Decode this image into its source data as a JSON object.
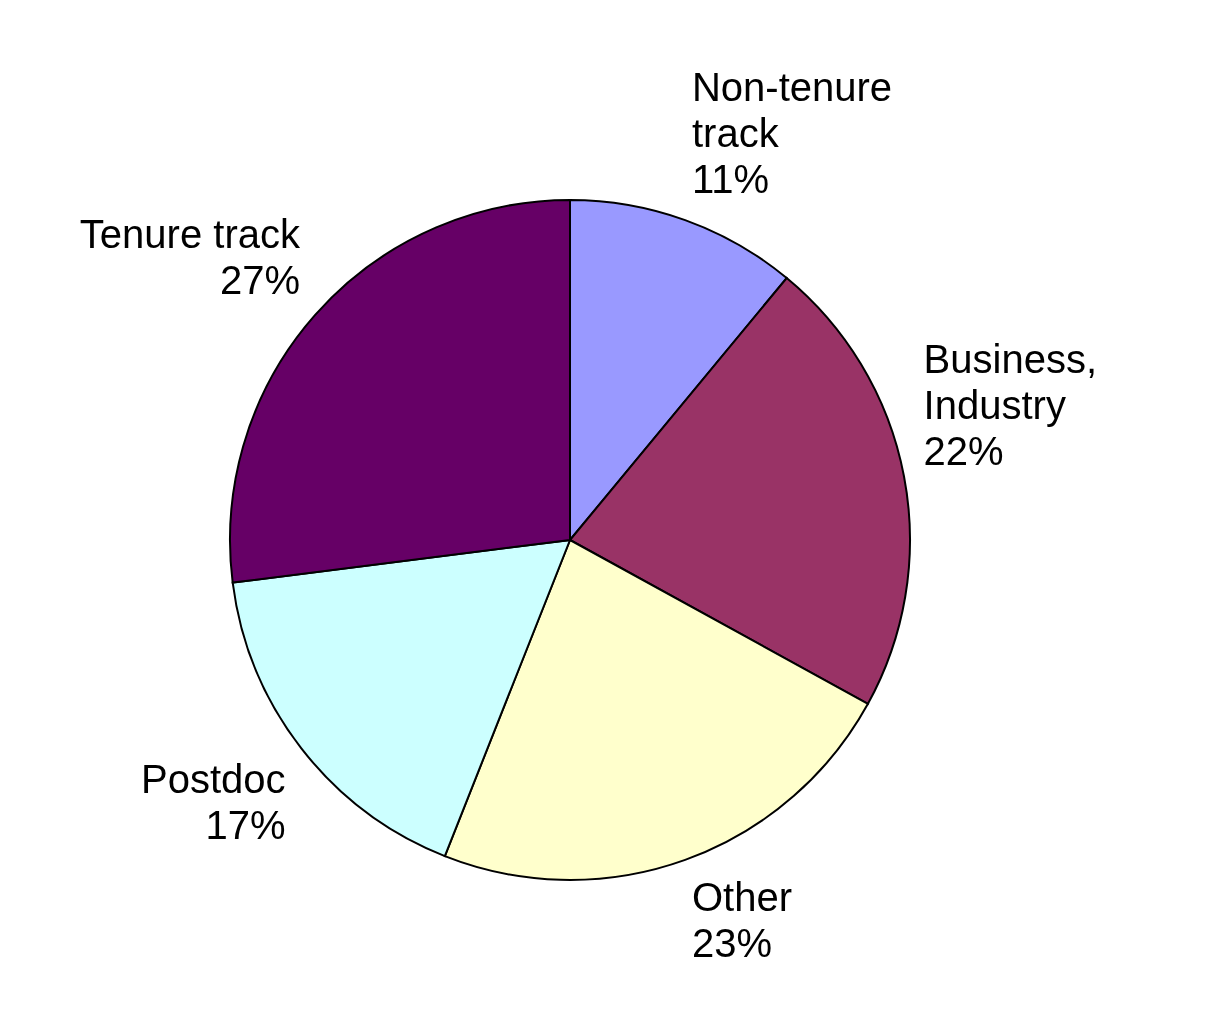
{
  "chart_data": {
    "type": "pie",
    "categories": [
      "Non-tenure track",
      "Business, Industry",
      "Other",
      "Postdoc",
      "Tenure track"
    ],
    "values": [
      11,
      22,
      23,
      17,
      27
    ],
    "value_labels": [
      "11%",
      "22%",
      "23%",
      "17%",
      "27%"
    ],
    "colors": [
      "#9999ff",
      "#993366",
      "#ffffcc",
      "#ccffff",
      "#660066"
    ]
  }
}
